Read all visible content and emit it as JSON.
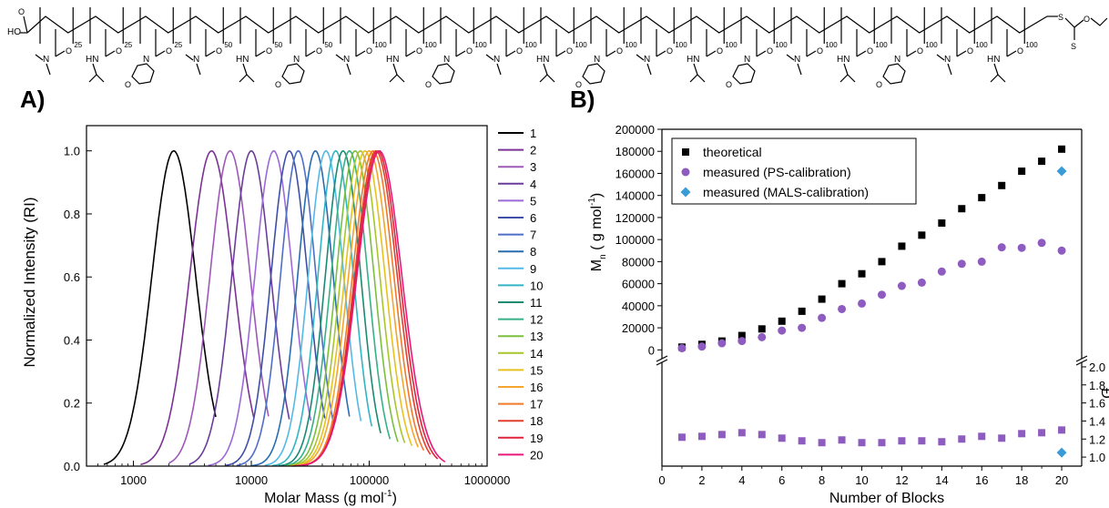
{
  "structure": {
    "end_left": "HO",
    "end_right_atoms": [
      "S",
      "S",
      "O"
    ],
    "subscripts": [
      "25",
      "25",
      "25",
      "50",
      "50",
      "50",
      "100",
      "100",
      "100",
      "100",
      "100",
      "100",
      "100",
      "100",
      "100",
      "100",
      "100",
      "100",
      "100",
      "100"
    ],
    "monomer_cycle": [
      "DMA",
      "NIPAM",
      "NAM"
    ]
  },
  "chart_data": [
    {
      "type": "line",
      "panel_label": "A)",
      "xlabel": "Molar Mass (g mol",
      "xlabel_sup": "-1",
      "xlabel_end": ")",
      "ylabel": "Normalized Intensity (RI)",
      "xscale": "log",
      "xlim": [
        400,
        1000000
      ],
      "ylim": [
        0,
        1.08
      ],
      "xticks": [
        1000,
        10000,
        100000,
        1000000
      ],
      "xtick_labels": [
        "1000",
        "10000",
        "100000",
        "1000000"
      ],
      "yticks": [
        0.0,
        0.2,
        0.4,
        0.6,
        0.8,
        1.0
      ],
      "ytick_labels": [
        "0.0",
        "0.2",
        "0.4",
        "0.6",
        "0.8",
        "1.0"
      ],
      "legend_position": "right-outside",
      "grid": false,
      "series": [
        {
          "name": "1",
          "peak": 2200,
          "sigma": 0.185,
          "x_start": 560,
          "x_end": 5000,
          "color": "#000000"
        },
        {
          "name": "2",
          "peak": 4600,
          "sigma": 0.185,
          "x_start": 1150,
          "x_end": 10500,
          "color": "#7b3294"
        },
        {
          "name": "3",
          "peak": 6600,
          "sigma": 0.17,
          "x_start": 2000,
          "x_end": 14000,
          "color": "#9e58b8"
        },
        {
          "name": "4",
          "peak": 10000,
          "sigma": 0.165,
          "x_start": 3000,
          "x_end": 21000,
          "color": "#6a3d9a"
        },
        {
          "name": "5",
          "peak": 15500,
          "sigma": 0.16,
          "x_start": 4300,
          "x_end": 32000,
          "color": "#9c6ad6"
        },
        {
          "name": "6",
          "peak": 21000,
          "sigma": 0.155,
          "x_start": 6000,
          "x_end": 42000,
          "color": "#3f4fa8"
        },
        {
          "name": "7",
          "peak": 25000,
          "sigma": 0.15,
          "x_start": 7500,
          "x_end": 50000,
          "color": "#4f6ec8"
        },
        {
          "name": "8",
          "peak": 35000,
          "sigma": 0.15,
          "x_start": 10000,
          "x_end": 68000,
          "color": "#2a6cb0"
        },
        {
          "name": "9",
          "peak": 43000,
          "sigma": 0.15,
          "x_start": 13000,
          "x_end": 85000,
          "color": "#55b9e8"
        },
        {
          "name": "10",
          "peak": 52000,
          "sigma": 0.15,
          "x_start": 15000,
          "x_end": 105000,
          "color": "#31b5c4"
        },
        {
          "name": "11",
          "peak": 60000,
          "sigma": 0.15,
          "x_start": 17000,
          "x_end": 125000,
          "color": "#1a8a72"
        },
        {
          "name": "12",
          "peak": 68000,
          "sigma": 0.155,
          "x_start": 19000,
          "x_end": 150000,
          "color": "#36b087"
        },
        {
          "name": "13",
          "peak": 76000,
          "sigma": 0.16,
          "x_start": 20000,
          "x_end": 175000,
          "color": "#7bbf3f"
        },
        {
          "name": "14",
          "peak": 84000,
          "sigma": 0.165,
          "x_start": 21000,
          "x_end": 200000,
          "color": "#a8c62c"
        },
        {
          "name": "15",
          "peak": 92000,
          "sigma": 0.17,
          "x_start": 22000,
          "x_end": 230000,
          "color": "#e6c21e"
        },
        {
          "name": "16",
          "peak": 100000,
          "sigma": 0.175,
          "x_start": 22000,
          "x_end": 260000,
          "color": "#f3a52d"
        },
        {
          "name": "17",
          "peak": 108000,
          "sigma": 0.175,
          "x_start": 22000,
          "x_end": 290000,
          "color": "#f07a2a"
        },
        {
          "name": "18",
          "peak": 114000,
          "sigma": 0.18,
          "x_start": 23000,
          "x_end": 330000,
          "color": "#e33f2e"
        },
        {
          "name": "19",
          "peak": 118000,
          "sigma": 0.185,
          "x_start": 23000,
          "x_end": 380000,
          "color": "#e0223a"
        },
        {
          "name": "20",
          "peak": 122000,
          "sigma": 0.19,
          "x_start": 24000,
          "x_end": 440000,
          "color": "#e8197a"
        }
      ]
    },
    {
      "type": "scatter",
      "panel_label": "B)",
      "xlabel": "Number of Blocks",
      "ylabel_main": "M",
      "ylabel_sub": "n",
      "ylabel_rest": " ( g mol",
      "ylabel_sup": "-1",
      "ylabel_end": ")",
      "ylabel_right": "Đ",
      "xlim": [
        0,
        21
      ],
      "xticks": [
        0,
        2,
        4,
        6,
        8,
        10,
        12,
        14,
        16,
        18,
        20
      ],
      "xtick_labels": [
        "0",
        "2",
        "4",
        "6",
        "8",
        "10",
        "12",
        "14",
        "16",
        "18",
        "20"
      ],
      "upper": {
        "ylim": [
          -8000,
          200000
        ],
        "yticks": [
          0,
          20000,
          40000,
          60000,
          80000,
          100000,
          120000,
          140000,
          160000,
          180000,
          200000
        ],
        "ytick_labels": [
          "0",
          "20000",
          "40000",
          "60000",
          "80000",
          "100000",
          "120000",
          "140000",
          "160000",
          "180000",
          "200000"
        ]
      },
      "lower": {
        "ylim": [
          0.9,
          2.05
        ],
        "yticks": [
          1.0,
          1.2,
          1.4,
          1.6,
          1.8,
          2.0
        ],
        "ytick_labels": [
          "1.0",
          "1.2",
          "1.4",
          "1.6",
          "1.8",
          "2.0"
        ]
      },
      "legend_position": "top-left",
      "grid": false,
      "series": [
        {
          "name": "theoretical",
          "marker": "square",
          "color": "#000000",
          "panel": "upper",
          "x": [
            1,
            2,
            3,
            4,
            5,
            6,
            7,
            8,
            9,
            10,
            11,
            12,
            13,
            14,
            15,
            16,
            17,
            18,
            19,
            20
          ],
          "y": [
            2500,
            5000,
            8000,
            13000,
            19000,
            26000,
            35000,
            46000,
            60000,
            69000,
            80000,
            94000,
            104000,
            115000,
            128000,
            138000,
            149000,
            162000,
            171000,
            182000
          ]
        },
        {
          "name": "measured (PS-calibration)",
          "marker": "circle",
          "color": "#8e5bc0",
          "panel": "upper",
          "x": [
            1,
            2,
            3,
            4,
            5,
            6,
            7,
            8,
            9,
            10,
            11,
            12,
            13,
            14,
            15,
            16,
            17,
            18,
            19,
            20
          ],
          "y": [
            1500,
            3000,
            6000,
            8000,
            11500,
            17500,
            20000,
            29000,
            37000,
            42000,
            50000,
            58000,
            61000,
            71000,
            78000,
            80000,
            93000,
            92500,
            97000,
            90000
          ]
        },
        {
          "name": "measured (MALS-calibration)",
          "marker": "diamond",
          "color": "#3b9bd6",
          "panel": "upper",
          "x": [
            20
          ],
          "y": [
            162000
          ]
        },
        {
          "name": "",
          "marker": "square",
          "color": "#8e5bc0",
          "panel": "lower",
          "x": [
            1,
            2,
            3,
            4,
            5,
            6,
            7,
            8,
            9,
            10,
            11,
            12,
            13,
            14,
            15,
            16,
            17,
            18,
            19,
            20
          ],
          "y": [
            1.22,
            1.23,
            1.25,
            1.27,
            1.25,
            1.21,
            1.18,
            1.16,
            1.19,
            1.16,
            1.16,
            1.18,
            1.18,
            1.17,
            1.2,
            1.23,
            1.21,
            1.26,
            1.27,
            1.3
          ]
        },
        {
          "name": "",
          "marker": "diamond",
          "color": "#3b9bd6",
          "panel": "lower",
          "x": [
            20
          ],
          "y": [
            1.05
          ]
        }
      ]
    }
  ]
}
